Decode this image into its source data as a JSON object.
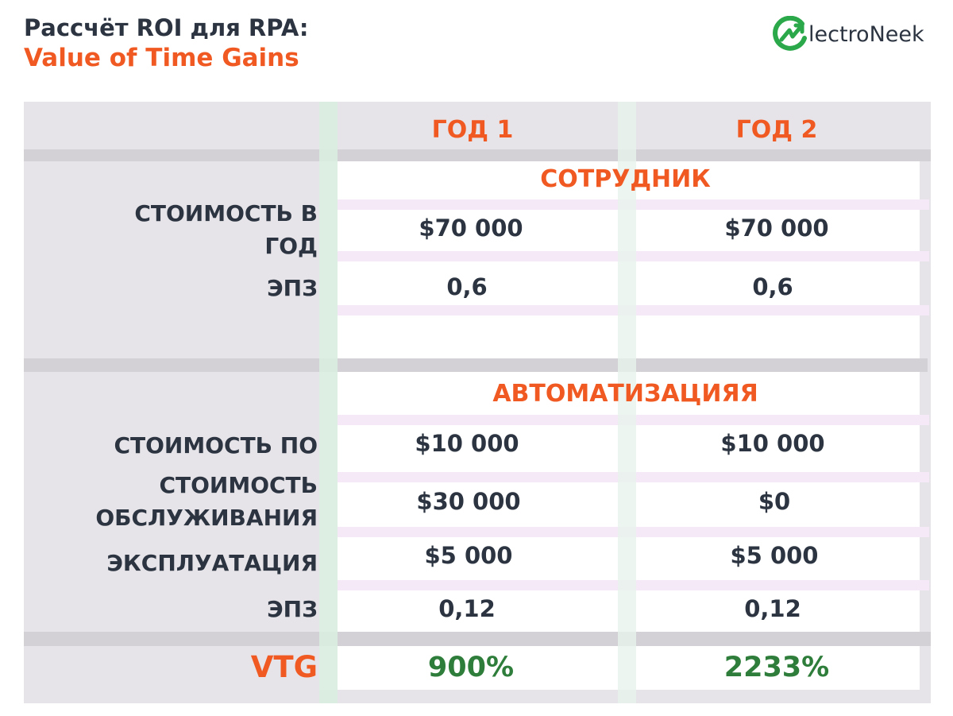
{
  "title": {
    "line1": "Рассчёт ROI для RPA:",
    "line2": "Value of Time Gains"
  },
  "logo": {
    "text": "lectroNeek",
    "icon": "electroneek-logo-icon"
  },
  "columns": [
    "ГОД 1",
    "ГОД 2"
  ],
  "sections": [
    {
      "title": "СОТРУДНИК",
      "rows": [
        {
          "label": "СТОИМОСТЬ В ГОД",
          "line1": "СТОИМОСТЬ В",
          "line2": "ГОД",
          "values": [
            "$70 000",
            "$70 000"
          ]
        },
        {
          "label": "ЭПЗ",
          "values": [
            "0,6",
            "0,6"
          ]
        }
      ]
    },
    {
      "title": "АВТОМАТИЗАЦИЯЯ",
      "rows": [
        {
          "label": "СТОИМОСТЬ ПО",
          "values": [
            "$10 000",
            "$10 000"
          ]
        },
        {
          "label": "СТОИМОСТЬ ОБСЛУЖИВАНИЯ",
          "line1": "СТОИМОСТЬ",
          "line2": "ОБСЛУЖИВАНИЯ",
          "values": [
            "$30 000",
            "$0"
          ]
        },
        {
          "label": "ЭКСПЛУАТАЦИЯ",
          "values": [
            "$5 000",
            "$5 000"
          ]
        },
        {
          "label": "ЭПЗ",
          "values": [
            "0,12",
            "0,12"
          ]
        }
      ]
    }
  ],
  "result": {
    "label": "VTG",
    "values": [
      "900%",
      "2233%"
    ]
  },
  "colors": {
    "accent": "#f05a22",
    "text": "#2b3440",
    "positive": "#2e7d3a",
    "label_bg": "#e6e4e9",
    "stripe": "#f5e8f7",
    "green_col": "#d9ede0"
  }
}
